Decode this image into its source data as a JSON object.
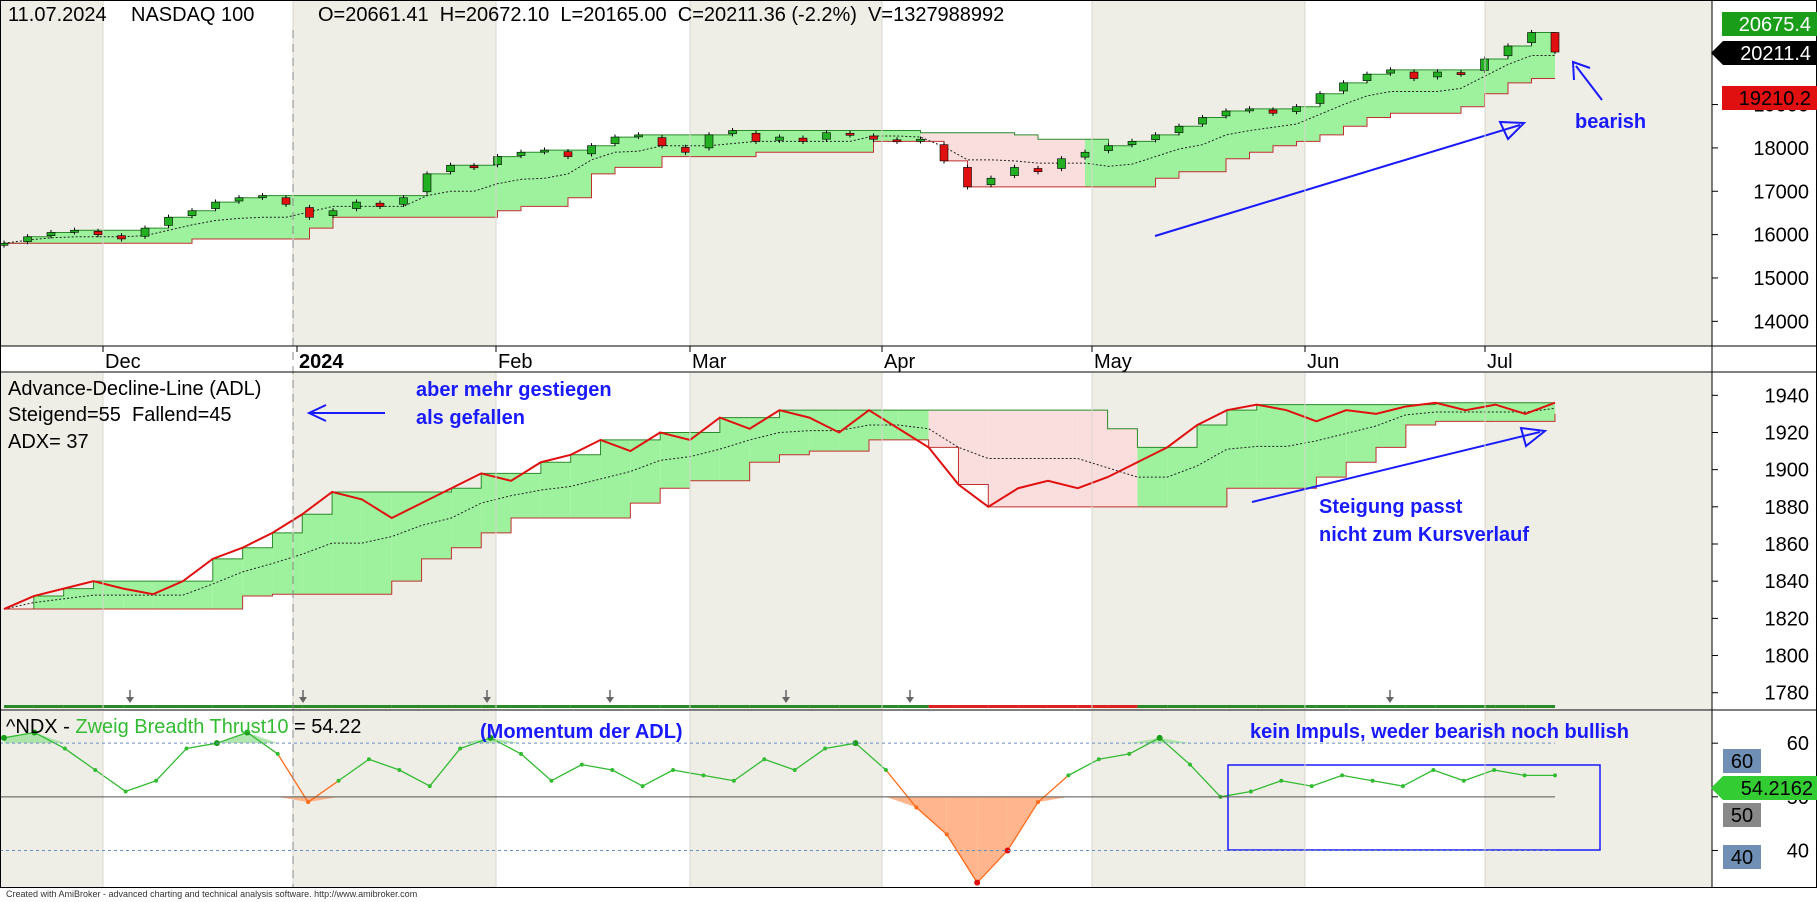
{
  "header": {
    "date": "11.07.2024",
    "symbol": "NASDAQ 100",
    "ohlc": "O=20661.41  H=20672.10  L=20165.00  C=20211.36 (-2.2%)  V=1327988992"
  },
  "price_panel": {
    "badges": [
      "20675.4",
      "20211.4",
      "19210.2"
    ],
    "annotation": "bearish"
  },
  "adl_panel": {
    "title": "Advance-Decline-Line (ADL)",
    "line2": "Steigend=55  Fallend=45",
    "line3": "ADX= 37",
    "annotation_top": [
      "aber mehr gestiegen",
      "als gefallen"
    ],
    "annotation_bottom": [
      "Steigung passt",
      "nicht zum Kursverlauf"
    ]
  },
  "zbt_panel": {
    "title_prefix": "^NDX - ",
    "title_name": "Zweig Breadth Thrust10",
    "title_value": " = 54.22",
    "annotation_left": "(Momentum der ADL)",
    "annotation_right": "kein Impuls, weder bearish noch bullish",
    "badges": [
      "60",
      "50",
      "40"
    ],
    "current_badge": "54.2162"
  },
  "footer": {
    "credit": "Created with AmiBroker - advanced charting and technical analysis software. http://www.amibroker.com"
  },
  "colors": {
    "up_band": "#9ef29e",
    "down_band": "#fadede",
    "candle_up": "#22b022",
    "candle_down": "#e01010",
    "adl_line": "#e01010",
    "zbt_line": "#33bb33",
    "zbt_low": "#ff6a1a",
    "annotation": "#1a1aff",
    "month_shade": "#efeee6"
  },
  "chart_data": [
    {
      "type": "candlestick",
      "title": "NASDAQ 100",
      "x_ticks": [
        "Dec",
        "2024",
        "Feb",
        "Mar",
        "Apr",
        "May",
        "Jun",
        "Jul"
      ],
      "y_ticks": [
        14000,
        15000,
        16000,
        17000,
        18000,
        19000
      ],
      "ylim": [
        13800,
        20950
      ],
      "last": {
        "date": "11.07.2024",
        "open": 20661.41,
        "high": 20672.1,
        "low": 20165.0,
        "close": 20211.36,
        "change_pct": -2.2,
        "volume": 1327988992
      },
      "close_approx": [
        15800,
        15950,
        16050,
        16100,
        16000,
        15900,
        16150,
        16400,
        16550,
        16750,
        16850,
        16900,
        16700,
        16400,
        16550,
        16750,
        16650,
        16850,
        17400,
        17600,
        17550,
        17800,
        17900,
        17950,
        17800,
        18050,
        18250,
        18300,
        18050,
        17900,
        18300,
        18400,
        18150,
        18250,
        18150,
        18350,
        18300,
        18200,
        18150,
        18200,
        17700,
        17100,
        17300,
        17550,
        17450,
        17750,
        17900,
        18050,
        18150,
        18300,
        18500,
        18700,
        18850,
        18900,
        18800,
        18950,
        19250,
        19500,
        19700,
        19800,
        19600,
        19750,
        19700,
        20050,
        20350,
        20661,
        20211
      ]
    },
    {
      "type": "line",
      "title": "Advance-Decline-Line (ADL)",
      "stats": {
        "Steigend": 55,
        "Fallend": 45,
        "ADX": 37
      },
      "y_ticks": [
        1780,
        1800,
        1820,
        1840,
        1860,
        1880,
        1900,
        1920,
        1940
      ],
      "ylim": [
        1775,
        1952
      ],
      "values_approx": [
        1825,
        1832,
        1836,
        1840,
        1836,
        1833,
        1840,
        1852,
        1858,
        1866,
        1876,
        1888,
        1884,
        1874,
        1882,
        1890,
        1898,
        1894,
        1904,
        1908,
        1916,
        1910,
        1920,
        1916,
        1928,
        1922,
        1932,
        1928,
        1920,
        1932,
        1922,
        1912,
        1892,
        1880,
        1890,
        1894,
        1890,
        1896,
        1904,
        1912,
        1924,
        1932,
        1935,
        1932,
        1926,
        1932,
        1930,
        1934,
        1936,
        1932,
        1935,
        1930,
        1936
      ]
    },
    {
      "type": "line",
      "title": "Zweig Breadth Thrust10",
      "y_ticks": [
        40,
        50,
        60
      ],
      "ylim": [
        33,
        66
      ],
      "current": 54.2162,
      "values_approx": [
        61,
        62,
        59,
        55,
        51,
        53,
        59,
        60,
        62,
        58,
        49,
        53,
        57,
        55,
        52,
        59,
        61,
        58,
        53,
        56,
        55,
        52,
        55,
        54,
        53,
        57,
        55,
        59,
        60,
        55,
        48,
        43,
        34,
        40,
        49,
        54,
        57,
        58,
        61,
        56,
        50,
        51,
        53,
        52,
        54,
        53,
        52,
        55,
        53,
        55,
        54,
        54
      ]
    }
  ]
}
